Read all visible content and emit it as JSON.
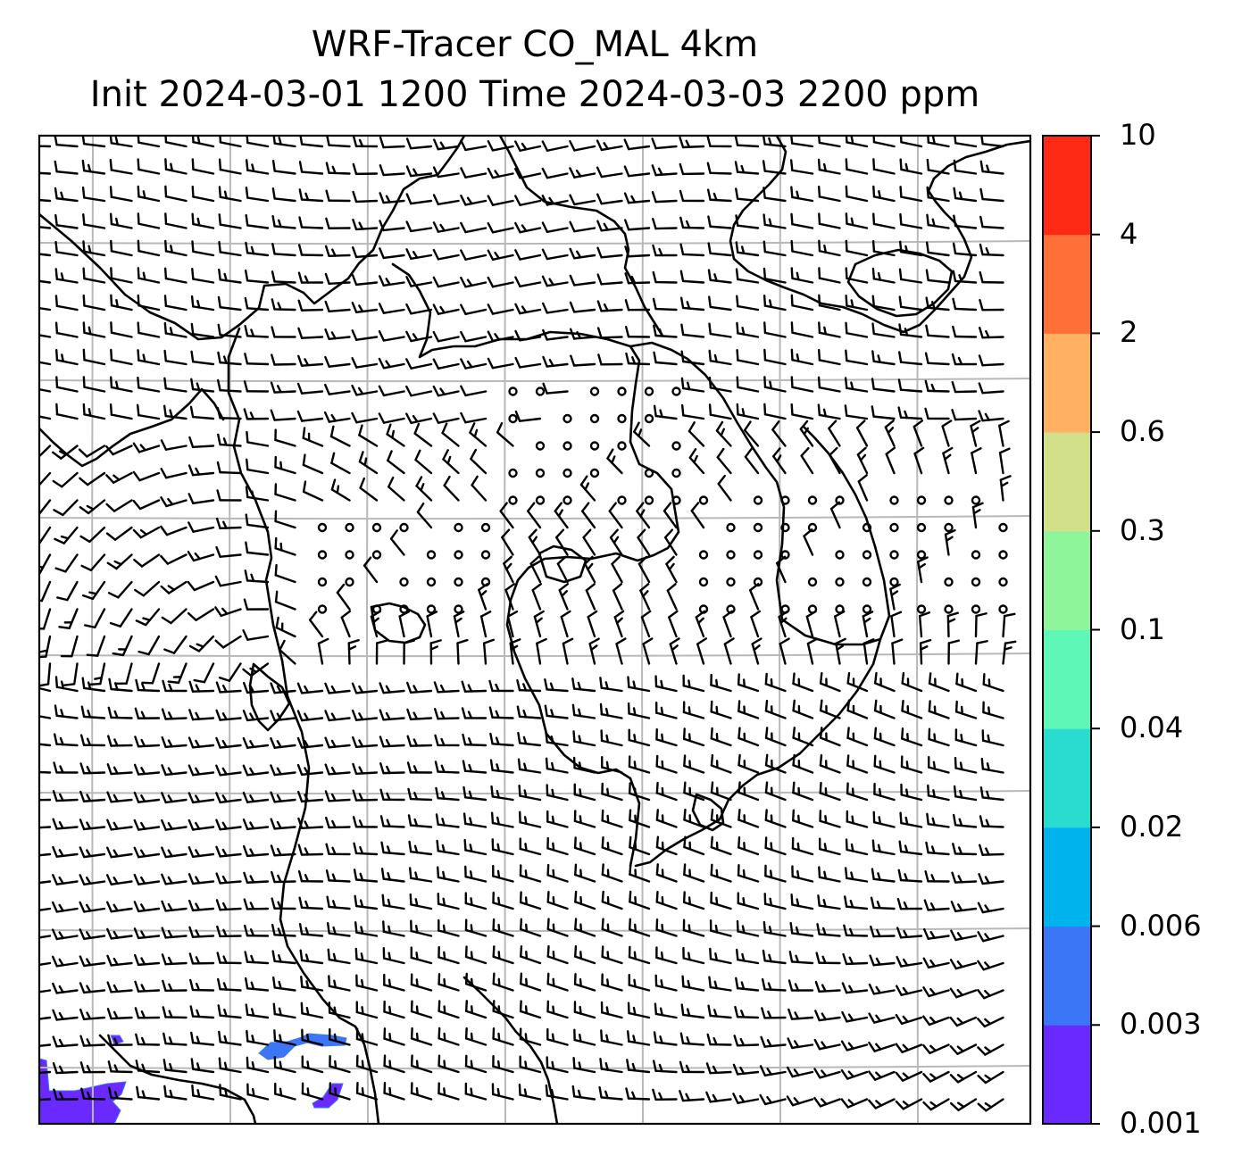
{
  "title": {
    "line1": "WRF-Tracer CO_MAL 4km",
    "line2": "Init 2024-03-01 1200 Time 2024-03-03 2200 ppm"
  },
  "colorbar": {
    "ticks": [
      "0.001",
      "0.003",
      "0.006",
      "0.02",
      "0.04",
      "0.1",
      "0.3",
      "0.6",
      "2",
      "4",
      "10"
    ],
    "colors": [
      "#6a2aff",
      "#3a76f5",
      "#00b3ec",
      "#2adbd0",
      "#5ef7b8",
      "#8ff59a",
      "#d3e08a",
      "#ffb062",
      "#ff7038",
      "#ff2a16"
    ]
  },
  "map": {
    "gridline_color": "#b8b8b8",
    "coastline_color": "#000000",
    "barb_color": "#000000",
    "tracer_color": "#6a2aff",
    "tracer_secondary_color": "#3a76f5",
    "grid_divisions_x": 7,
    "grid_divisions_y": 7
  }
}
